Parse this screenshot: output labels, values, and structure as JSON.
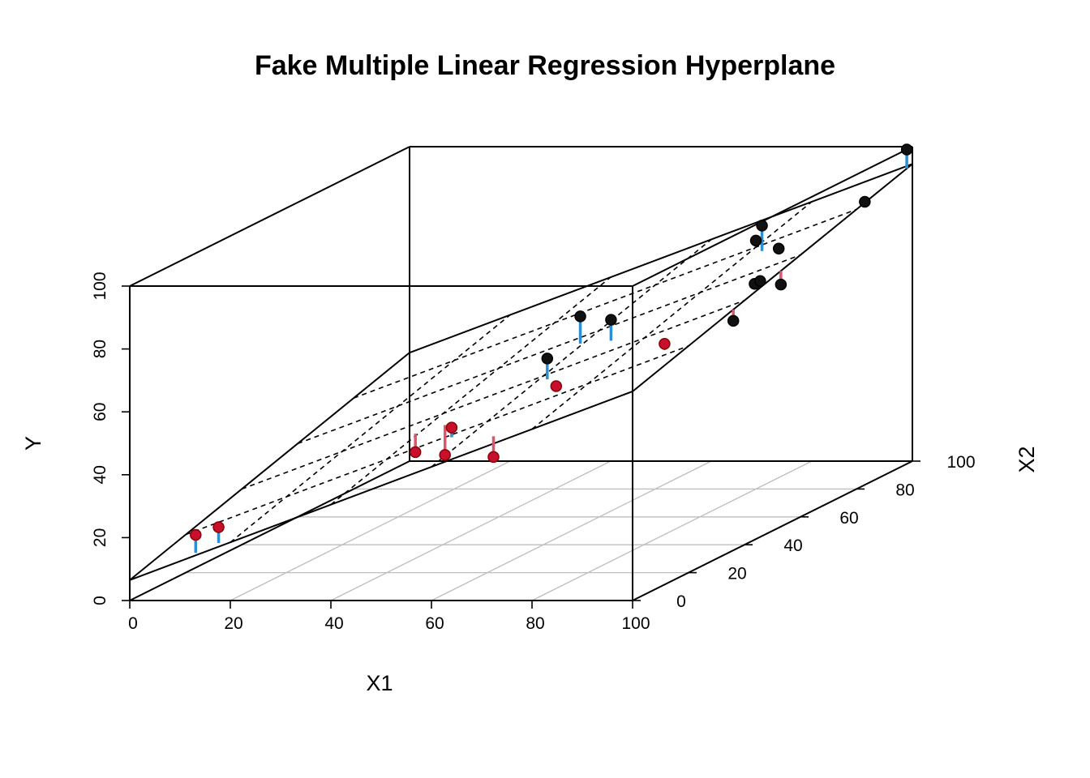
{
  "chart_data": {
    "type": "scatter",
    "title": "Fake Multiple Linear Regression Hyperplane",
    "xlabel": "X1",
    "zlabel": "X2",
    "ylabel": "Y",
    "x_ticks": [
      0,
      20,
      40,
      60,
      80,
      100
    ],
    "z_ticks": [
      0,
      20,
      40,
      60,
      80,
      100
    ],
    "y_ticks": [
      0,
      20,
      40,
      60,
      80,
      100
    ],
    "xlim": [
      0,
      100
    ],
    "zlim": [
      0,
      100
    ],
    "ylim": [
      0,
      100
    ],
    "plane": {
      "intercept": 6.5,
      "coef_x1": 0.6,
      "coef_x2": 0.28
    },
    "colors": {
      "above_plane": "#2b8fd6",
      "below_plane": "#df536b",
      "point_dark": "#111111",
      "point_red": "#c8102e",
      "grid": "#bebebe",
      "frame": "#000000"
    },
    "points": [
      {
        "x1": 12,
        "x2": 2,
        "y": 20
      },
      {
        "x1": 16,
        "x2": 3,
        "y": 22
      },
      {
        "x1": 39,
        "x2": 32,
        "y": 33
      },
      {
        "x1": 46,
        "x2": 30,
        "y": 33
      },
      {
        "x1": 54,
        "x2": 18,
        "y": 47
      },
      {
        "x1": 69,
        "x2": 6,
        "y": 43
      },
      {
        "x1": 59,
        "x2": 55,
        "y": 66
      },
      {
        "x1": 63,
        "x2": 36,
        "y": 61
      },
      {
        "x1": 67,
        "x2": 32,
        "y": 54
      },
      {
        "x1": 69,
        "x2": 48,
        "y": 68
      },
      {
        "x1": 75,
        "x2": 89,
        "y": 75
      },
      {
        "x1": 93,
        "x2": 24,
        "y": 71
      },
      {
        "x1": 84,
        "x2": 75,
        "y": 86
      },
      {
        "x1": 89,
        "x2": 72,
        "y": 80
      },
      {
        "x1": 97,
        "x2": 49,
        "y": 79
      },
      {
        "x1": 97,
        "x2": 51,
        "y": 79
      },
      {
        "x1": 100,
        "x2": 53,
        "y": 77
      },
      {
        "x1": 100,
        "x2": 36,
        "y": 73
      },
      {
        "x1": 100,
        "x2": 98,
        "y": 100
      },
      {
        "x1": 100,
        "x2": 83,
        "y": 90
      }
    ]
  }
}
